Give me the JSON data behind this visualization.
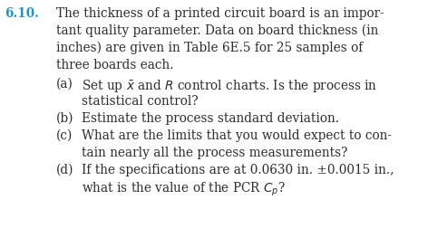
{
  "background_color": "#ffffff",
  "number_text": "6.10.",
  "number_color": "#2196d4",
  "body_color": "#2d2d2d",
  "font_size_main": 9.8,
  "intro_lines": [
    "The thickness of a printed circuit board is an impor-",
    "tant quality parameter. Data on board thickness (in",
    "inches) are given in Table 6E.5 for 25 samples of",
    "three boards each."
  ],
  "items": [
    {
      "label": "(a)",
      "lines": [
        "Set up $\\bar{x}$ and $R$ control charts. Is the process in",
        "statistical control?"
      ]
    },
    {
      "label": "(b)",
      "lines": [
        "Estimate the process standard deviation."
      ]
    },
    {
      "label": "(c)",
      "lines": [
        "What are the limits that you would expect to con-",
        "tain nearly all the process measurements?"
      ]
    },
    {
      "label": "(d)",
      "lines": [
        "If the specifications are at 0.0630 in. ±0.0015 in.,",
        "what is the value of the PCR $C_p$?"
      ]
    }
  ]
}
